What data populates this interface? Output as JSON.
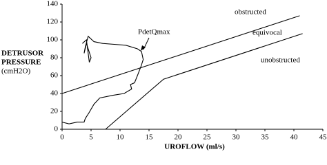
{
  "chart_data": {
    "type": "line",
    "y_label": [
      "DETRUSOR",
      "PRESSURE",
      "(cmH2O)"
    ],
    "x_label": "UROFLOW (ml/s)",
    "annotations": [
      "obstructed",
      "equivocal",
      "unobstructed",
      "PdetQmax"
    ],
    "xlim": [
      0,
      45
    ],
    "xticks": [
      0,
      5,
      10,
      15,
      20,
      25,
      30,
      35,
      40,
      45
    ],
    "ylim": [
      0,
      140
    ],
    "yticks": [
      0,
      20,
      40,
      60,
      80,
      100,
      120,
      140
    ],
    "grid": false,
    "series": [
      {
        "color": "#000000",
        "x": [
          0,
          41
        ],
        "values": [
          40,
          127
        ]
      },
      {
        "color": "#000000",
        "x": [
          7.5,
          17.5,
          41.5
        ],
        "values": [
          0,
          56,
          107
        ]
      },
      {
        "color": "#000000",
        "x": [
          0,
          1.2,
          2.6,
          3.8,
          4,
          4.6,
          5.5,
          6.5,
          8.8,
          10.7,
          12,
          11.8,
          12.5,
          13,
          13.6,
          14,
          13.7,
          13,
          11,
          9,
          7,
          5.5,
          4.5,
          4,
          3.8,
          4.2,
          5,
          4.7,
          4.2,
          3.5
        ],
        "values": [
          8,
          6,
          8,
          8,
          12,
          18,
          28,
          35,
          38,
          40,
          45,
          50,
          52,
          60,
          70,
          78,
          87,
          90,
          94,
          95,
          96,
          98,
          104,
          92,
          85,
          96,
          80,
          75,
          100,
          96
        ]
      }
    ]
  }
}
